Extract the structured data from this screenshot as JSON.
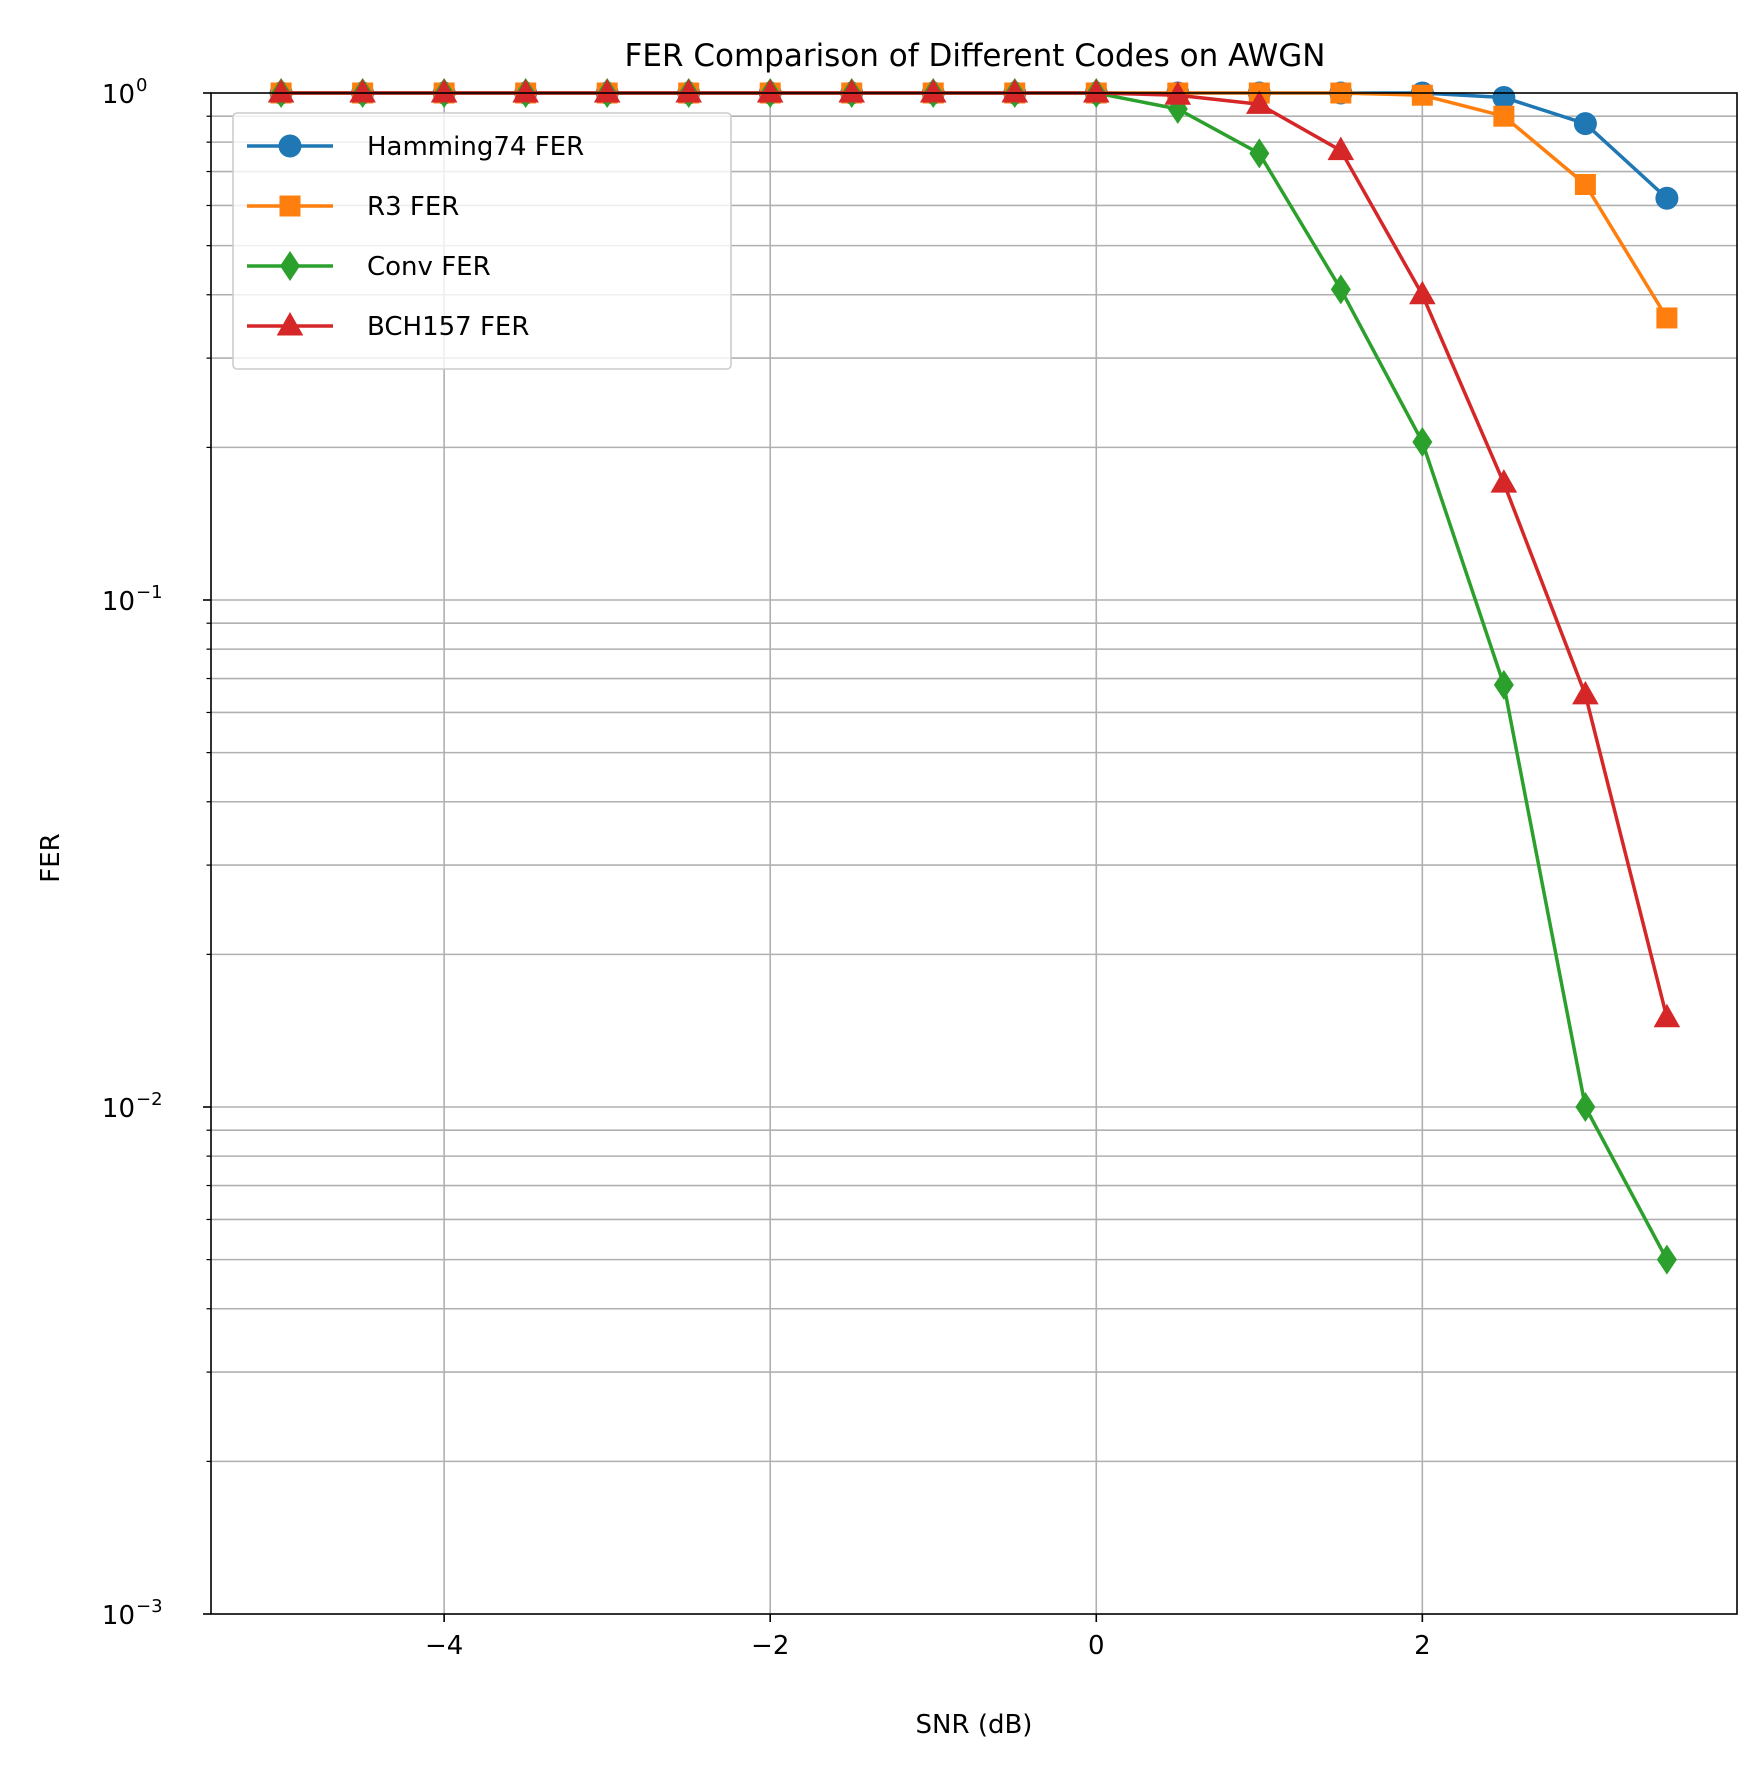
{
  "chart_data": {
    "type": "line",
    "title": "FER Comparison of Different Codes on AWGN",
    "xlabel": "SNR (dB)",
    "ylabel": "FER",
    "xlim": [
      -5.43,
      3.93
    ],
    "ylim": [
      0.001,
      1
    ],
    "yscale": "log",
    "grid": "both",
    "legend_position": "top-left",
    "x_ticks": [
      -4,
      -2,
      0,
      2
    ],
    "x_tick_labels": [
      "−4",
      "−2",
      "0",
      "2"
    ],
    "y_tick_labels": [
      {
        "base": "10",
        "exp": "0",
        "value": 1
      },
      {
        "base": "10",
        "exp": "−1",
        "value": 0.1
      },
      {
        "base": "10",
        "exp": "−2",
        "value": 0.01
      },
      {
        "base": "10",
        "exp": "−3",
        "value": 0.001
      }
    ],
    "x": [
      -5,
      -4.5,
      -4,
      -3.5,
      -3,
      -2.5,
      -2,
      -1.5,
      -1,
      -0.5,
      0,
      0.5,
      1,
      1.5,
      2,
      2.5,
      3,
      3.5
    ],
    "series": [
      {
        "name": "Hamming74 FER",
        "color": "#1f77b4",
        "marker": "circle",
        "values": [
          1,
          1,
          1,
          1,
          1,
          1,
          1,
          1,
          1,
          1,
          1,
          1,
          1,
          1,
          1,
          0.98,
          0.87,
          0.62
        ]
      },
      {
        "name": "R3 FER",
        "color": "#ff7f0e",
        "marker": "square",
        "values": [
          1,
          1,
          1,
          1,
          1,
          1,
          1,
          1,
          1,
          1,
          1,
          1,
          1,
          1,
          0.99,
          0.9,
          0.66,
          0.36
        ]
      },
      {
        "name": "Conv FER",
        "color": "#2ca02c",
        "marker": "diamond",
        "values": [
          1,
          1,
          1,
          1,
          1,
          1,
          1,
          1,
          1,
          1,
          1,
          0.93,
          0.76,
          0.41,
          0.205,
          0.068,
          0.01,
          0.005
        ]
      },
      {
        "name": "BCH157 FER",
        "color": "#d62728",
        "marker": "triangle",
        "values": [
          1,
          1,
          1,
          1,
          1,
          1,
          1,
          1,
          1,
          1,
          1,
          0.99,
          0.95,
          0.77,
          0.4,
          0.17,
          0.065,
          0.015
        ]
      }
    ]
  }
}
